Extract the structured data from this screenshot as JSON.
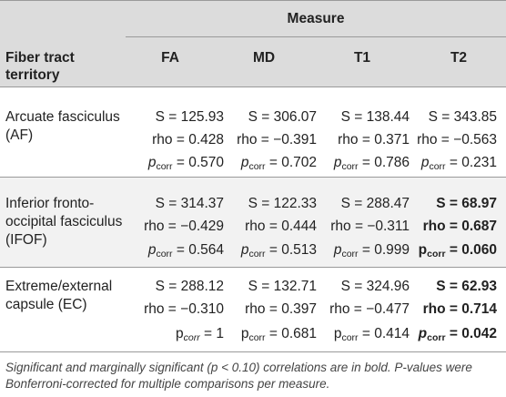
{
  "header": {
    "measure_label": "Measure",
    "row_label_line1": "Fiber tract",
    "row_label_line2": "territory",
    "columns": [
      "FA",
      "MD",
      "T1",
      "T2"
    ]
  },
  "rows": [
    {
      "name_line1": "Arcuate fasciculus",
      "name_line2": "(AF)",
      "cells": [
        {
          "s": "S = 125.93",
          "rho": "rho = 0.428",
          "p_prefix": "p",
          "p_sub": "corr",
          "p_val": " = 0.570"
        },
        {
          "s": "S = 306.07",
          "rho": "rho = −0.391",
          "p_prefix": "p",
          "p_sub": "corr",
          "p_val": " = 0.702"
        },
        {
          "s": "S = 138.44",
          "rho": "rho = 0.371",
          "p_prefix": "p",
          "p_sub": "corr",
          "p_val": " = 0.786"
        },
        {
          "s": "S = 343.85",
          "rho": "rho = −0.563",
          "p_prefix": "p",
          "p_sub": "corr",
          "p_val": " = 0.231"
        }
      ]
    },
    {
      "name_line1": "Inferior fronto-",
      "name_line2": "occipital fasciculus",
      "name_line3": "(IFOF)",
      "cells": [
        {
          "s": "S = 314.37",
          "rho": "rho = −0.429",
          "p_prefix": "p",
          "p_sub": "corr",
          "p_val": " = 0.564"
        },
        {
          "s": "S = 122.33",
          "rho": "rho = 0.444",
          "p_prefix": "p",
          "p_sub": "corr",
          "p_val": " = 0.513"
        },
        {
          "s": "S = 288.47",
          "rho": "rho = −0.311",
          "p_prefix": "p",
          "p_sub": "corr",
          "p_val": " = 0.999"
        },
        {
          "s": "S = 68.97",
          "rho": "rho = 0.687",
          "p_prefix": "p",
          "p_sub": "corr",
          "p_val": " = 0.060"
        }
      ]
    },
    {
      "name_line1": "Extreme/external",
      "name_line2": "capsule (EC)",
      "cells": [
        {
          "s": "S = 288.12",
          "rho": "rho = −0.310",
          "p_prefix": "p",
          "p_sub": "corr",
          "p_val": " = 1"
        },
        {
          "s": "S = 132.71",
          "rho": "rho = 0.397",
          "p_prefix": "p",
          "p_sub": "corr",
          "p_val": " = 0.681"
        },
        {
          "s": "S = 324.96",
          "rho": "rho = −0.477",
          "p_prefix": "p",
          "p_sub": "corr",
          "p_val": " = 0.414"
        },
        {
          "s": "S = 62.93",
          "rho": "rho = 0.714",
          "p_prefix": "p",
          "p_sub": "corr",
          "p_val": " = 0.042"
        }
      ]
    }
  ],
  "footnote": "Significant and marginally significant (p < 0.10) correlations are in bold. P-values were Bonferroni-corrected for multiple comparisons per measure."
}
